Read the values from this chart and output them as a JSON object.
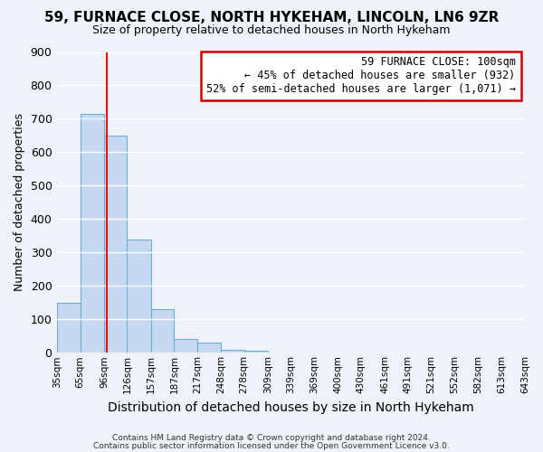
{
  "title": "59, FURNACE CLOSE, NORTH HYKEHAM, LINCOLN, LN6 9ZR",
  "subtitle": "Size of property relative to detached houses in North Hykeham",
  "xlabel": "Distribution of detached houses by size in North Hykeham",
  "ylabel": "Number of detached properties",
  "bar_values": [
    150,
    715,
    650,
    340,
    130,
    42,
    30,
    10,
    5,
    0,
    0,
    0,
    0,
    0,
    0,
    0,
    0,
    0,
    0,
    0
  ],
  "bin_edges": [
    35,
    65,
    96,
    126,
    157,
    187,
    217,
    248,
    278,
    309,
    339,
    369,
    400,
    430,
    461,
    491,
    521,
    552,
    582,
    613,
    643
  ],
  "tick_labels": [
    "35sqm",
    "65sqm",
    "96sqm",
    "126sqm",
    "157sqm",
    "187sqm",
    "217sqm",
    "248sqm",
    "278sqm",
    "309sqm",
    "339sqm",
    "369sqm",
    "400sqm",
    "430sqm",
    "461sqm",
    "491sqm",
    "521sqm",
    "552sqm",
    "582sqm",
    "613sqm",
    "643sqm"
  ],
  "bar_color": "#c5d9f0",
  "bar_edge_color": "#6aaed6",
  "red_line_x": 100,
  "annotation_title": "59 FURNACE CLOSE: 100sqm",
  "annotation_line1": "← 45% of detached houses are smaller (932)",
  "annotation_line2": "52% of semi-detached houses are larger (1,071) →",
  "annotation_box_facecolor": "#ffffff",
  "annotation_box_edgecolor": "#cc0000",
  "ylim": [
    0,
    900
  ],
  "yticks": [
    0,
    100,
    200,
    300,
    400,
    500,
    600,
    700,
    800,
    900
  ],
  "footer1": "Contains HM Land Registry data © Crown copyright and database right 2024.",
  "footer2": "Contains public sector information licensed under the Open Government Licence v3.0.",
  "background_color": "#eef2f9",
  "grid_color": "#ffffff",
  "figsize": [
    6.0,
    5.0
  ],
  "dpi": 100
}
